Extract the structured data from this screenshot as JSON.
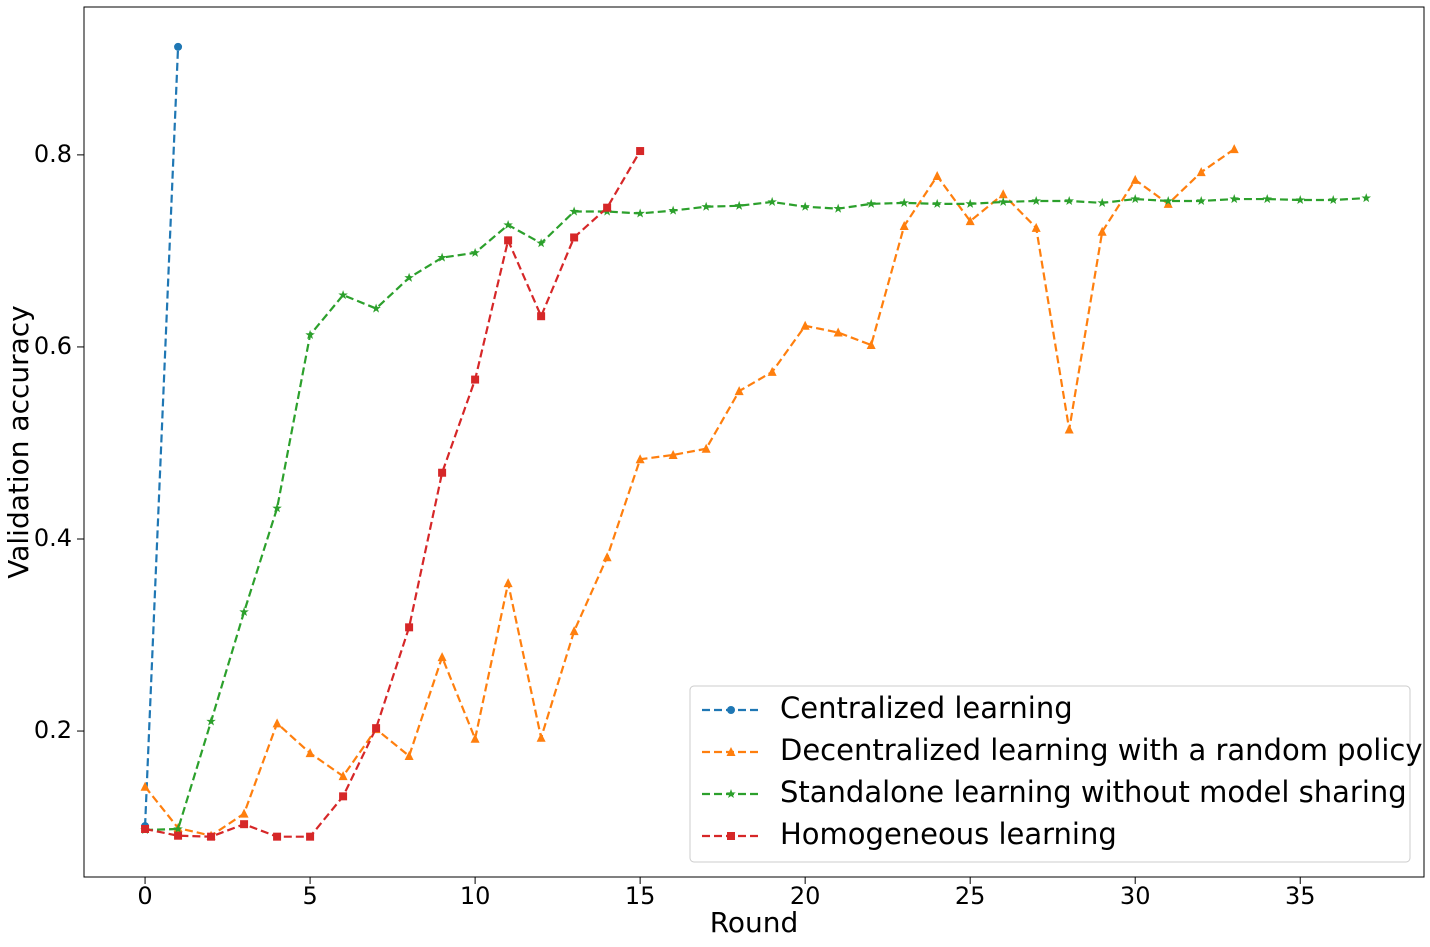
{
  "chart_data": {
    "type": "line",
    "xlabel": "Round",
    "ylabel": "Validation accuracy",
    "xlim": [
      -1.85,
      38.75
    ],
    "ylim": [
      0.048,
      0.954
    ],
    "xticks": [
      0,
      5,
      10,
      15,
      20,
      25,
      30,
      35
    ],
    "yticks": [
      0.2,
      0.4,
      0.6,
      0.8
    ],
    "grid": false,
    "legend": "lower right",
    "series": [
      {
        "name": "Centralized learning",
        "color": "#1f77b4",
        "marker": "circle",
        "x": [
          0,
          1
        ],
        "values": [
          0.101,
          0.9125
        ]
      },
      {
        "name": "Decentralized learning with a random policy",
        "color": "#ff7f0e",
        "marker": "triangle",
        "x": [
          0,
          1,
          2,
          3,
          4,
          5,
          6,
          7,
          8,
          9,
          10,
          11,
          12,
          13,
          14,
          15,
          16,
          17,
          18,
          19,
          20,
          21,
          22,
          23,
          24,
          25,
          26,
          27,
          28,
          29,
          30,
          31,
          32,
          33
        ],
        "values": [
          0.142,
          0.099,
          0.091,
          0.114,
          0.208,
          0.177,
          0.153,
          0.202,
          0.174,
          0.277,
          0.192,
          0.354,
          0.193,
          0.304,
          0.381,
          0.483,
          0.4875,
          0.494,
          0.554,
          0.574,
          0.622,
          0.615,
          0.602,
          0.726,
          0.778,
          0.731,
          0.759,
          0.724,
          0.514,
          0.72,
          0.774,
          0.749,
          0.782,
          0.806
        ]
      },
      {
        "name": "Standalone learning without model sharing",
        "color": "#2ca02c",
        "marker": "star",
        "x": [
          0,
          1,
          2,
          3,
          4,
          5,
          6,
          7,
          8,
          9,
          10,
          11,
          12,
          13,
          14,
          15,
          16,
          17,
          18,
          19,
          20,
          21,
          22,
          23,
          24,
          25,
          26,
          27,
          28,
          29,
          30,
          31,
          32,
          33,
          34,
          35,
          36,
          37
        ],
        "values": [
          0.097,
          0.098,
          0.21,
          0.324,
          0.432,
          0.6125,
          0.654,
          0.64,
          0.672,
          0.693,
          0.698,
          0.727,
          0.708,
          0.741,
          0.741,
          0.739,
          0.742,
          0.746,
          0.747,
          0.751,
          0.746,
          0.744,
          0.749,
          0.75,
          0.749,
          0.749,
          0.751,
          0.752,
          0.752,
          0.75,
          0.754,
          0.752,
          0.752,
          0.754,
          0.754,
          0.753,
          0.753,
          0.755
        ]
      },
      {
        "name": "Homogeneous learning",
        "color": "#d62728",
        "marker": "square",
        "x": [
          0,
          1,
          2,
          3,
          4,
          5,
          6,
          7,
          8,
          9,
          10,
          11,
          12,
          13,
          14,
          15
        ],
        "values": [
          0.098,
          0.091,
          0.09,
          0.103,
          0.09,
          0.09,
          0.132,
          0.203,
          0.308,
          0.469,
          0.566,
          0.711,
          0.632,
          0.714,
          0.745,
          0.804
        ]
      }
    ]
  }
}
